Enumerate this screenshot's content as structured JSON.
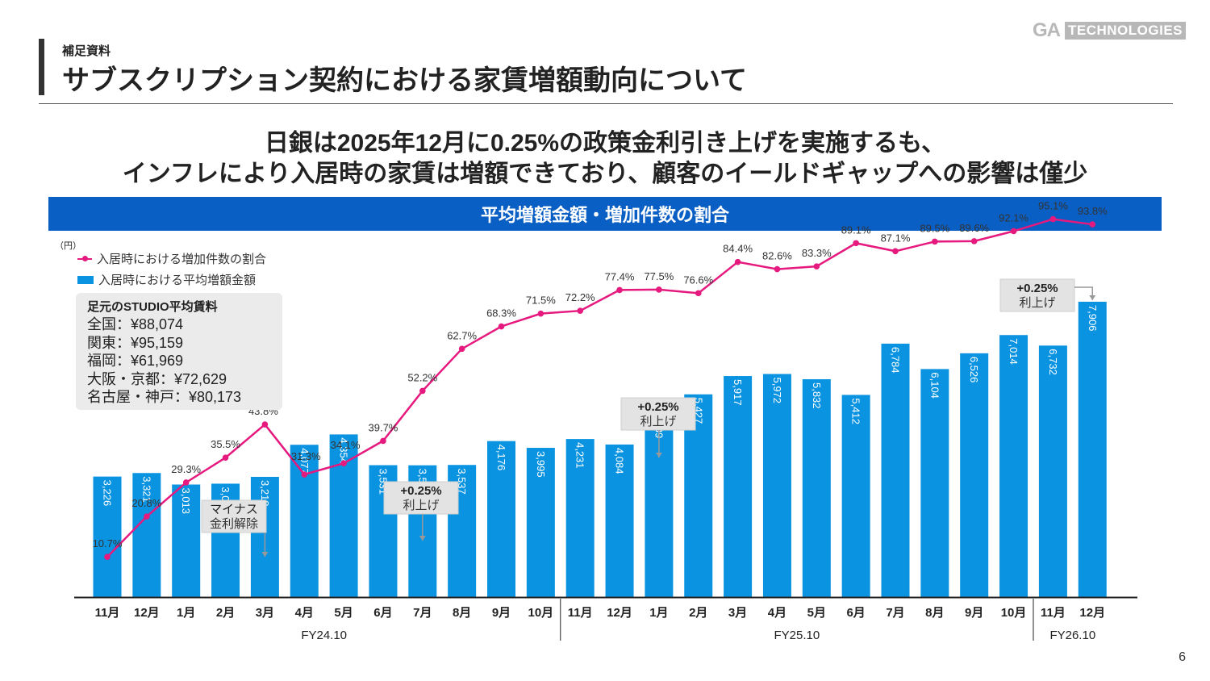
{
  "brand": {
    "logo_main": "GA",
    "logo_sub": "TECHNOLOGIES"
  },
  "header": {
    "section_label": "補足資料",
    "title": "サブスクリプション契約における家賃増額動向について"
  },
  "headline": {
    "line1": "日銀は2025年12月に0.25%の政策金利引き上げを実施するも、",
    "line2": "インフレにより入居時の家賃は増額できており、顧客のイールドギャップへの影響は僅少"
  },
  "chart_banner": "平均増額金額・増加件数の割合",
  "rent_box": {
    "title": "足元のSTUDIO平均賃料",
    "lines": [
      "全国：¥88,074",
      "関東：¥95,159",
      "福岡：¥61,969",
      "大阪・京都：¥72,629",
      "名古屋・神戸：¥80,173"
    ]
  },
  "page_number": "6",
  "chart_data": {
    "type": "bar+line",
    "unit_label": "（円）",
    "categories": [
      "11月",
      "12月",
      "1月",
      "2月",
      "3月",
      "4月",
      "5月",
      "6月",
      "7月",
      "8月",
      "9月",
      "10月",
      "11月",
      "12月",
      "1月",
      "2月",
      "3月",
      "4月",
      "5月",
      "6月",
      "7月",
      "8月",
      "9月",
      "10月",
      "11月",
      "12月"
    ],
    "fiscal_groups": [
      {
        "label": "FY24.10",
        "start": 0,
        "end": 11
      },
      {
        "label": "FY25.10",
        "start": 12,
        "end": 23
      },
      {
        "label": "FY26.10",
        "start": 24,
        "end": 25
      }
    ],
    "series": [
      {
        "name": "入居時における平均増額金額",
        "type": "bar",
        "color": "#0a93e0",
        "values": [
          3226,
          3321,
          3013,
          3036,
          3218,
          4077,
          4354,
          3531,
          3528,
          3537,
          4176,
          3995,
          4231,
          4084,
          5039,
          5427,
          5917,
          5972,
          5832,
          5412,
          6784,
          6104,
          6526,
          7014,
          6732,
          7906
        ],
        "labels": [
          "3,226",
          "3,321",
          "3,013",
          "3,036",
          "3,218",
          "4,077",
          "4,354",
          "3,531",
          "3,528",
          "3,537",
          "4,176",
          "3,995",
          "4,231",
          "4,084",
          "5,039",
          "5,427",
          "5,917",
          "5,972",
          "5,832",
          "5,412",
          "6,784",
          "6,104",
          "6,526",
          "7,014",
          "6,732",
          "7,906"
        ]
      },
      {
        "name": "入居時における増加件数の割合",
        "type": "line",
        "color": "#e6197f",
        "values": [
          10.7,
          20.8,
          29.3,
          35.5,
          43.8,
          31.3,
          34.1,
          39.7,
          52.2,
          62.7,
          68.3,
          71.5,
          72.2,
          77.4,
          77.5,
          76.6,
          84.4,
          82.6,
          83.3,
          89.1,
          87.1,
          89.5,
          89.6,
          92.1,
          95.1,
          93.8
        ],
        "labels": [
          "10.7%",
          "20.8%",
          "29.3%",
          "35.5%",
          "43.8%",
          "31.3%",
          "34.1%",
          "39.7%",
          "52.2%",
          "62.7%",
          "68.3%",
          "71.5%",
          "72.2%",
          "77.4%",
          "77.5%",
          "76.6%",
          "84.4%",
          "82.6%",
          "83.3%",
          "89.1%",
          "87.1%",
          "89.5%",
          "89.6%",
          "92.1%",
          "95.1%",
          "93.8%"
        ]
      }
    ],
    "annotations": [
      {
        "index": 4,
        "line1": "マイナス",
        "line2": "金利解除"
      },
      {
        "index": 8,
        "line1": "+0.25%",
        "line2": "利上げ"
      },
      {
        "index": 14,
        "line1": "+0.25%",
        "line2": "利上げ"
      },
      {
        "index": 25,
        "line1": "+0.25%",
        "line2": "利上げ"
      }
    ]
  }
}
